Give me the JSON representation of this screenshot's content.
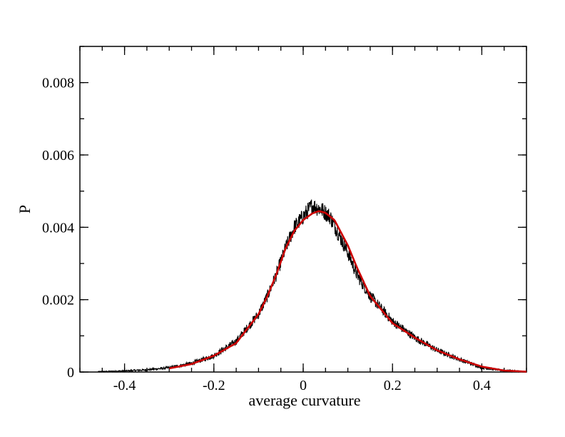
{
  "chart_data": {
    "type": "line",
    "title": "",
    "xlabel": "average curvature",
    "ylabel": "P",
    "xlim": [
      -0.5,
      0.5
    ],
    "ylim": [
      0,
      0.009
    ],
    "x_ticks": [
      -0.4,
      -0.2,
      0,
      0.2,
      0.4
    ],
    "x_tick_labels": [
      "-0.4",
      "-0.2",
      "0",
      "0.2",
      "0.4"
    ],
    "x_minor_step": 0.05,
    "y_ticks": [
      0,
      0.002,
      0.004,
      0.006,
      0.008
    ],
    "y_tick_labels": [
      "0",
      "0.002",
      "0.004",
      "0.006",
      "0.008"
    ],
    "y_minor_step": 0.001,
    "grid": false,
    "legend": "none",
    "series": [
      {
        "style": "noisy-histogram",
        "color": "#000000",
        "x": [
          -0.46,
          -0.4,
          -0.35,
          -0.3,
          -0.25,
          -0.2,
          -0.15,
          -0.1,
          -0.08,
          -0.06,
          -0.04,
          -0.02,
          0,
          0.02,
          0.04,
          0.06,
          0.08,
          0.1,
          0.12,
          0.15,
          0.2,
          0.25,
          0.3,
          0.35,
          0.4,
          0.45,
          0.5
        ],
        "values": [
          1e-05,
          3e-05,
          6e-05,
          0.00012,
          0.00024,
          0.00045,
          0.00085,
          0.0016,
          0.0021,
          0.0027,
          0.0034,
          0.004,
          0.0043,
          0.0046,
          0.0045,
          0.0043,
          0.0038,
          0.0033,
          0.0027,
          0.0021,
          0.0014,
          0.00095,
          0.0006,
          0.00035,
          0.00012,
          4e-05,
          1e-05
        ]
      },
      {
        "style": "smooth-fit",
        "color": "#cc0000",
        "x": [
          -0.3,
          -0.25,
          -0.2,
          -0.15,
          -0.1,
          -0.08,
          -0.06,
          -0.04,
          -0.02,
          0,
          0.02,
          0.035,
          0.05,
          0.07,
          0.1,
          0.12,
          0.15,
          0.2,
          0.25,
          0.3,
          0.35,
          0.4,
          0.45,
          0.5
        ],
        "values": [
          0.0001,
          0.00022,
          0.00045,
          0.0008,
          0.0016,
          0.0021,
          0.0027,
          0.0034,
          0.0039,
          0.0042,
          0.00438,
          0.00445,
          0.0044,
          0.0042,
          0.0035,
          0.0029,
          0.0021,
          0.00135,
          0.00095,
          0.0006,
          0.00035,
          0.00015,
          4e-05,
          1e-05
        ]
      }
    ]
  }
}
